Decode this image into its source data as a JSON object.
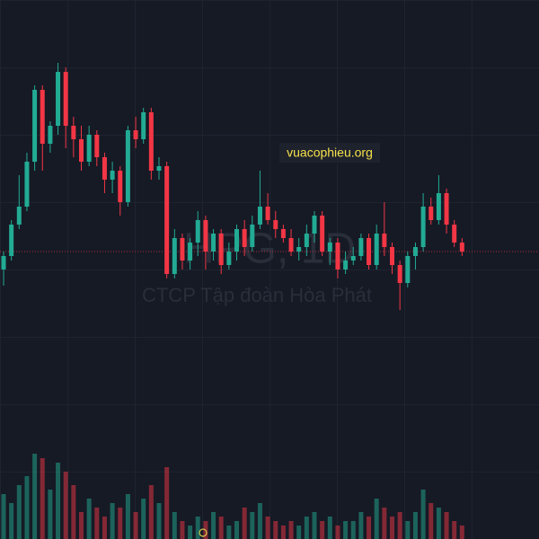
{
  "chart_data": {
    "type": "candlestick",
    "watermark_symbol": "HPG, 1D",
    "watermark_company": "CTCP Tập đoàn Hòa Phát",
    "site_label": "vuacophieu.org",
    "up_color": "#22ab94",
    "down_color": "#f23645",
    "ylim": [
      0,
      600
    ],
    "y2lim": [
      0,
      600
    ],
    "open": [
      300,
      315,
      350,
      370,
      420,
      500,
      440,
      460,
      520,
      460,
      445,
      420,
      450,
      425,
      400,
      410,
      375,
      455,
      445,
      475,
      410,
      415,
      295,
      335,
      310,
      330,
      355,
      320,
      340,
      305,
      320,
      345,
      325,
      350,
      370,
      355,
      345,
      335,
      320,
      325,
      340,
      360,
      320,
      330,
      300,
      310,
      315,
      335,
      305,
      340,
      325,
      305,
      285,
      315,
      325,
      370,
      355,
      385,
      350,
      330
    ],
    "high": [
      320,
      355,
      405,
      430,
      505,
      505,
      465,
      530,
      525,
      470,
      460,
      460,
      455,
      430,
      420,
      415,
      460,
      470,
      480,
      480,
      425,
      420,
      345,
      340,
      335,
      365,
      360,
      345,
      345,
      330,
      350,
      355,
      360,
      410,
      385,
      365,
      350,
      345,
      335,
      350,
      365,
      365,
      335,
      335,
      320,
      325,
      340,
      340,
      350,
      375,
      330,
      310,
      320,
      330,
      385,
      380,
      405,
      390,
      355,
      335
    ],
    "low": [
      282,
      310,
      345,
      365,
      410,
      410,
      430,
      450,
      435,
      425,
      410,
      415,
      415,
      385,
      385,
      360,
      370,
      435,
      440,
      400,
      400,
      290,
      290,
      300,
      300,
      315,
      300,
      310,
      295,
      300,
      310,
      315,
      320,
      345,
      350,
      335,
      330,
      315,
      310,
      315,
      330,
      315,
      305,
      290,
      295,
      305,
      310,
      300,
      300,
      315,
      295,
      255,
      280,
      300,
      320,
      350,
      350,
      340,
      325,
      315
    ],
    "close": [
      315,
      350,
      370,
      420,
      500,
      440,
      460,
      520,
      460,
      445,
      420,
      450,
      425,
      400,
      410,
      375,
      455,
      445,
      475,
      410,
      415,
      295,
      335,
      310,
      330,
      355,
      320,
      340,
      305,
      320,
      345,
      325,
      350,
      370,
      355,
      345,
      335,
      320,
      325,
      340,
      360,
      320,
      330,
      300,
      310,
      315,
      335,
      305,
      340,
      325,
      305,
      285,
      315,
      325,
      370,
      355,
      385,
      350,
      330,
      320
    ],
    "volume": [
      50,
      40,
      60,
      70,
      95,
      90,
      55,
      85,
      75,
      60,
      30,
      45,
      35,
      25,
      40,
      35,
      50,
      30,
      45,
      60,
      40,
      80,
      30,
      20,
      15,
      25,
      20,
      30,
      25,
      15,
      20,
      35,
      30,
      40,
      25,
      20,
      15,
      20,
      15,
      25,
      30,
      20,
      25,
      15,
      20,
      20,
      30,
      25,
      45,
      35,
      25,
      30,
      20,
      30,
      55,
      40,
      35,
      30,
      20,
      15
    ]
  }
}
